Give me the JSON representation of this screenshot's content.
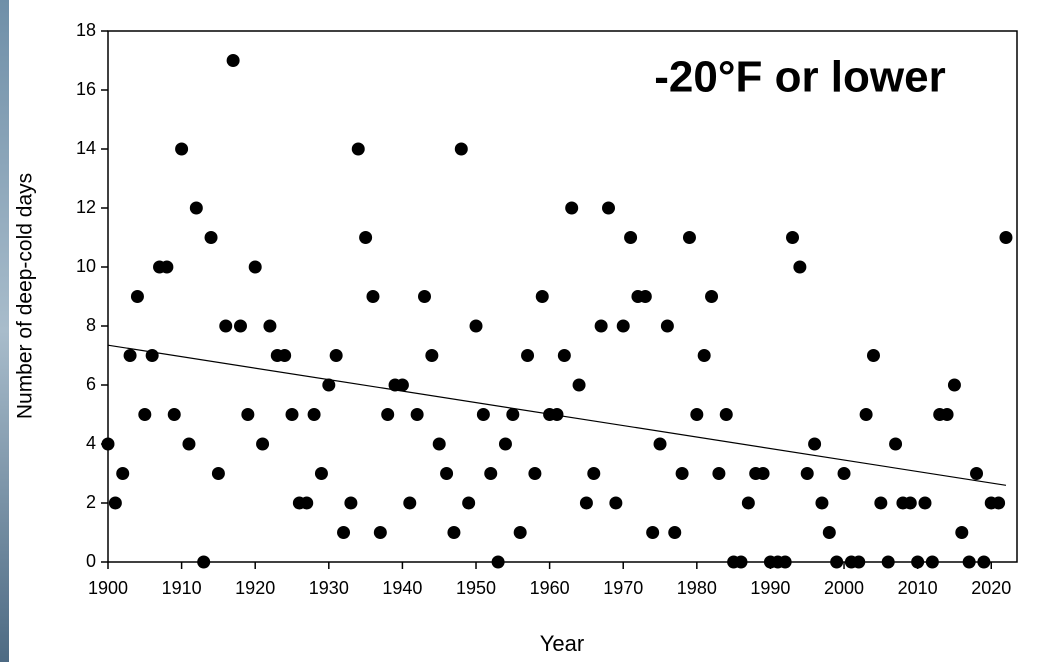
{
  "chart_data": {
    "type": "scatter",
    "annotation": "-20°F or lower",
    "xlabel": "Year",
    "ylabel": "Number of deep-cold days",
    "x": [
      1900,
      1901,
      1902,
      1903,
      1904,
      1905,
      1906,
      1907,
      1908,
      1909,
      1910,
      1911,
      1912,
      1913,
      1914,
      1915,
      1916,
      1917,
      1918,
      1919,
      1920,
      1921,
      1922,
      1923,
      1924,
      1925,
      1926,
      1927,
      1928,
      1929,
      1930,
      1931,
      1932,
      1933,
      1934,
      1935,
      1936,
      1937,
      1938,
      1939,
      1940,
      1941,
      1942,
      1943,
      1944,
      1945,
      1946,
      1947,
      1948,
      1949,
      1950,
      1951,
      1952,
      1953,
      1954,
      1955,
      1956,
      1957,
      1958,
      1959,
      1960,
      1961,
      1962,
      1963,
      1964,
      1965,
      1966,
      1967,
      1968,
      1969,
      1970,
      1971,
      1972,
      1973,
      1974,
      1975,
      1976,
      1977,
      1978,
      1979,
      1980,
      1981,
      1982,
      1983,
      1984,
      1985,
      1986,
      1987,
      1988,
      1989,
      1990,
      1991,
      1992,
      1993,
      1994,
      1995,
      1996,
      1997,
      1998,
      1999,
      2000,
      2001,
      2002,
      2003,
      2004,
      2005,
      2006,
      2007,
      2008,
      2009,
      2010,
      2011,
      2012,
      2013,
      2014,
      2015,
      2016,
      2017,
      2018,
      2019,
      2020,
      2021,
      2022
    ],
    "values": [
      4,
      2,
      3,
      7,
      9,
      5,
      7,
      10,
      10,
      5,
      14,
      4,
      12,
      0,
      11,
      3,
      8,
      17,
      8,
      5,
      10,
      4,
      8,
      7,
      7,
      5,
      2,
      2,
      5,
      3,
      6,
      7,
      1,
      2,
      14,
      11,
      9,
      1,
      5,
      6,
      6,
      2,
      5,
      9,
      7,
      4,
      3,
      1,
      14,
      2,
      8,
      5,
      3,
      0,
      4,
      5,
      1,
      7,
      3,
      9,
      5,
      5,
      7,
      12,
      6,
      2,
      3,
      8,
      12,
      2,
      8,
      11,
      9,
      9,
      1,
      4,
      8,
      1,
      3,
      11,
      5,
      7,
      9,
      3,
      5,
      0,
      0,
      2,
      3,
      3,
      0,
      0,
      0,
      11,
      10,
      3,
      4,
      2,
      1,
      0,
      3,
      0,
      0,
      5,
      7,
      2,
      0,
      4,
      2,
      2,
      0,
      2,
      0,
      5,
      5,
      6,
      1,
      0,
      3,
      0,
      2,
      2,
      11
    ],
    "color": "#000000",
    "trend": {
      "x": [
        1900,
        2022
      ],
      "y": [
        7.35,
        2.6
      ]
    },
    "xlim": [
      1900,
      2023.5
    ],
    "ylim": [
      0,
      18
    ],
    "xticks": [
      1900,
      1910,
      1920,
      1930,
      1940,
      1950,
      1960,
      1970,
      1980,
      1990,
      2000,
      2010,
      2020
    ],
    "yticks": [
      0,
      2,
      4,
      6,
      8,
      10,
      12,
      14,
      16,
      18
    ]
  }
}
